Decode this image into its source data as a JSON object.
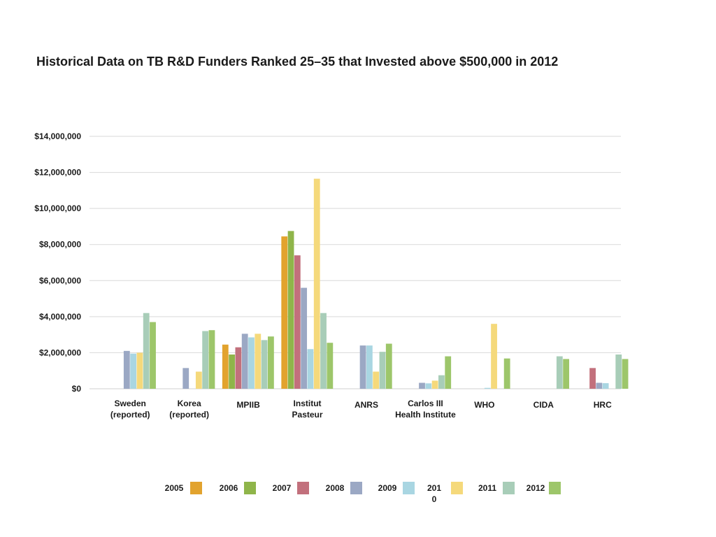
{
  "chart_data": {
    "type": "bar",
    "title": "Historical Data on TB R&D Funders Ranked 25–35 that Invested above $500,000 in 2012",
    "xlabel": "",
    "ylabel": "",
    "ylim": [
      0,
      14000000
    ],
    "yticks": [
      "$0",
      "$2,000,000",
      "$4,000,000",
      "$6,000,000",
      "$8,000,000",
      "$10,000,000",
      "$12,000,000",
      "$14,000,000"
    ],
    "grid": true,
    "legend_position": "bottom",
    "categories": [
      [
        "Sweden",
        "(reported)"
      ],
      [
        "Korea",
        "(reported)"
      ],
      [
        "MPIIB"
      ],
      [
        "Institut",
        "Pasteur"
      ],
      [
        "ANRS"
      ],
      [
        "Carlos III",
        "Health Institute"
      ],
      [
        "WHO"
      ],
      [
        "CIDA"
      ],
      [
        "HRC"
      ]
    ],
    "legend_labels": [
      "2005",
      "2006",
      "2007",
      "2008",
      "2009",
      [
        "201",
        "0"
      ],
      "2011",
      "2012"
    ],
    "series": [
      {
        "name": "2005",
        "color": "#E2A32E",
        "values": [
          null,
          null,
          2450000,
          8450000,
          null,
          null,
          null,
          null,
          null
        ]
      },
      {
        "name": "2006",
        "color": "#8FB54A",
        "values": [
          null,
          null,
          1900000,
          8750000,
          null,
          null,
          null,
          null,
          null
        ]
      },
      {
        "name": "2007",
        "color": "#C2707C",
        "values": [
          null,
          null,
          2300000,
          7400000,
          null,
          null,
          null,
          null,
          1150000
        ]
      },
      {
        "name": "2008",
        "color": "#9BA8C4",
        "values": [
          2100000,
          1150000,
          3050000,
          5600000,
          2400000,
          330000,
          null,
          null,
          330000
        ]
      },
      {
        "name": "2009",
        "color": "#A9D6E2",
        "values": [
          1950000,
          null,
          2850000,
          2200000,
          2400000,
          300000,
          50000,
          null,
          310000
        ]
      },
      {
        "name": "2010",
        "color": "#F5D97B",
        "values": [
          2000000,
          950000,
          3050000,
          11650000,
          950000,
          450000,
          3600000,
          null,
          null
        ]
      },
      {
        "name": "2011",
        "color": "#A8CDB8",
        "values": [
          4200000,
          3200000,
          2700000,
          4200000,
          2050000,
          750000,
          null,
          1800000,
          1900000
        ]
      },
      {
        "name": "2012",
        "color": "#9DC66A",
        "values": [
          3700000,
          3250000,
          2900000,
          2550000,
          2500000,
          1800000,
          1680000,
          1650000,
          1650000
        ]
      }
    ]
  }
}
